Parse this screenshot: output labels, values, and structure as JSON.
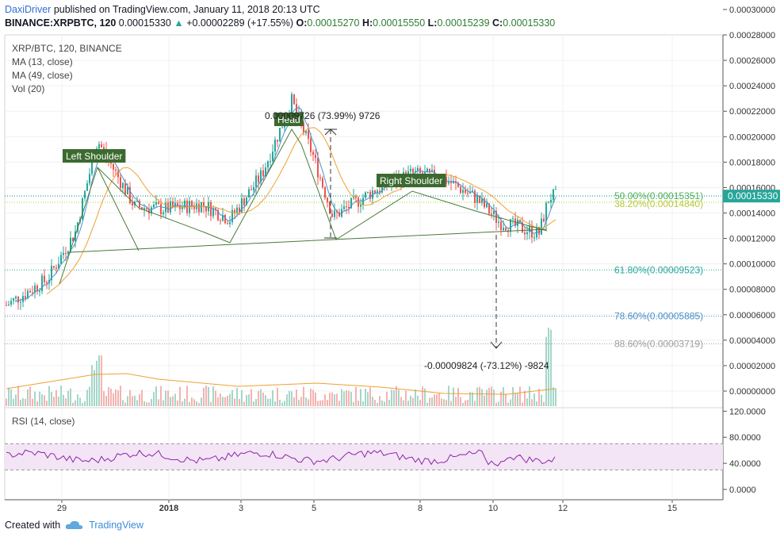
{
  "header": {
    "author": "DaxiDriver",
    "published_text": "published on TradingView.com, January 11, 2018 20:13 UTC"
  },
  "ohlc": {
    "symbol": "BINANCE:XRPBTC, 120",
    "last": "0.00015330",
    "change": "+0.00002289 (+17.55%)",
    "o_label": "O:",
    "o": "0.00015270",
    "h_label": "H:",
    "h": "0.00015550",
    "l_label": "L:",
    "l": "0.00015239",
    "c_label": "C:",
    "c": "0.00015330"
  },
  "legend": {
    "title": "XRP/BTC, 120, BINANCE",
    "ma13": "MA (13, close)",
    "ma49": "MA (49, close)",
    "vol": "Vol (20)"
  },
  "rsi_legend": "RSI (14, close)",
  "annotations": {
    "left_shoulder": "Left Shoulder",
    "head": "Head",
    "right_shoulder": "Right Shoulder",
    "measure_up": "0.00009726 (73.99%) 9726",
    "measure_down": "-0.00009824 (-73.12%) -9824"
  },
  "fib_levels": [
    {
      "label": "50.00%(0.00015351)",
      "value": 0.00015351,
      "color": "#4caf50"
    },
    {
      "label": "38.20%(0.00014840)",
      "value": 0.0001484,
      "color": "#b5c93a"
    },
    {
      "label": "61.80%(0.00009523)",
      "value": 9.523e-05,
      "color": "#26a69a"
    },
    {
      "label": "78.60%(0.00005885)",
      "value": 5.885e-05,
      "color": "#4a90c8"
    },
    {
      "label": "88.60%(0.00003719)",
      "value": 3.719e-05,
      "color": "#9e9e9e"
    }
  ],
  "price_axis": [
    "0.00030000",
    "0.00028000",
    "0.00026000",
    "0.00024000",
    "0.00022000",
    "0.00020000",
    "0.00018000",
    "0.00016000",
    "0.00014000",
    "0.00012000",
    "0.00010000",
    "0.00008000",
    "0.00006000",
    "0.00004000",
    "0.00002000",
    "0.00000000"
  ],
  "price_axis_values": [
    0.0003,
    0.00028,
    0.00026,
    0.00024,
    0.00022,
    0.0002,
    0.00018,
    0.00016,
    0.00014,
    0.00012,
    0.0001,
    8e-05,
    6e-05,
    4e-05,
    2e-05,
    0
  ],
  "current_price_tag": "0.00015330",
  "rsi_axis": [
    "120.0000",
    "80.0000",
    "40.0000",
    "0.0000"
  ],
  "rsi_axis_values": [
    120,
    80,
    40,
    0
  ],
  "time_axis": [
    "29",
    "2018",
    "3",
    "5",
    "8",
    "10",
    "12",
    "15"
  ],
  "colors": {
    "up": "#26a69a",
    "down": "#ef5350",
    "ma13": "#4a90c8",
    "ma49": "#f0a030",
    "pattern": "#4a7a3a",
    "tag_bg": "#3b6a2f",
    "rsi_line": "#8e24aa",
    "rsi_band": "#f3e5f5"
  },
  "footer": {
    "created_with": "Created with",
    "brand": "TradingView"
  }
}
